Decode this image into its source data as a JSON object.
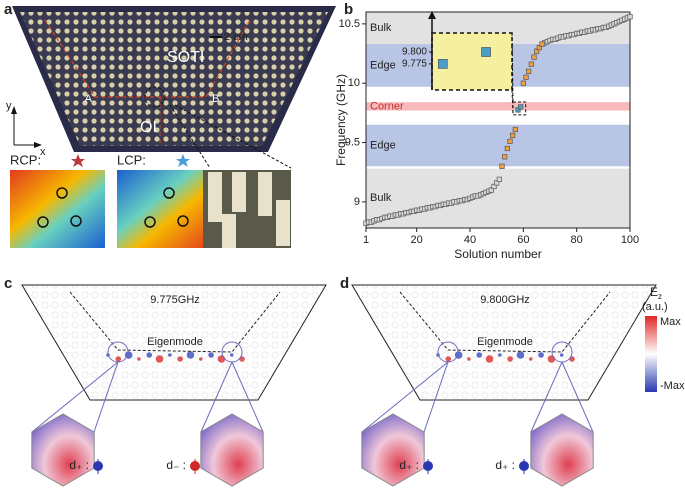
{
  "panel_labels": [
    "a",
    "b",
    "c",
    "d"
  ],
  "panel_a": {
    "soti": "SOTI",
    "oi": "OI",
    "point_a": "A",
    "point_b": "B",
    "scale": "2 cm",
    "axis_x": "x",
    "axis_y": "y",
    "rcp": "RCP:",
    "lcp": "LCP:"
  },
  "chart_data": {
    "type": "scatter",
    "xlabel": "Solution number",
    "ylabel": "Frequency (GHz)",
    "xlim": [
      1,
      100
    ],
    "ylim": [
      8.78,
      10.6
    ],
    "xticks": [
      1,
      20,
      40,
      60,
      80,
      100
    ],
    "yticks": [
      9,
      9.5,
      10,
      10.5
    ],
    "regions": [
      {
        "label": "Bulk",
        "from": 10.33,
        "to": 10.6,
        "color": "#e2e2e2"
      },
      {
        "label": "Edge",
        "from": 9.97,
        "to": 10.33,
        "color": "#b9c5e5"
      },
      {
        "label": "Corner",
        "from": 9.77,
        "to": 9.84,
        "color": "#f7b9b9"
      },
      {
        "label": "Edge",
        "from": 9.3,
        "to": 9.65,
        "color": "#b9c5e5"
      },
      {
        "label": "Bulk",
        "from": 8.78,
        "to": 9.28,
        "color": "#e2e2e2"
      }
    ],
    "series": [
      {
        "color": "#d9d9d9",
        "x": [
          1,
          2,
          3,
          4,
          5,
          6,
          7,
          8,
          9,
          10,
          11,
          12,
          13,
          14,
          15,
          16,
          17,
          18,
          19,
          20,
          21,
          22,
          23,
          24,
          25,
          26,
          27,
          28,
          29,
          30,
          31,
          32,
          33,
          34,
          35,
          36,
          37,
          38,
          39,
          40,
          41,
          42,
          43,
          44,
          45,
          46,
          47,
          48,
          49,
          50,
          51,
          68,
          69,
          70,
          71,
          72,
          73,
          74,
          75,
          76,
          77,
          78,
          79,
          80,
          81,
          82,
          83,
          84,
          85,
          86,
          87,
          88,
          89,
          90,
          91,
          92,
          93,
          94,
          95,
          96,
          97,
          98,
          99,
          100
        ],
        "values": [
          8.82,
          8.83,
          8.83,
          8.84,
          8.85,
          8.85,
          8.86,
          8.87,
          8.87,
          8.88,
          8.88,
          8.89,
          8.89,
          8.9,
          8.9,
          8.91,
          8.91,
          8.92,
          8.92,
          8.93,
          8.93,
          8.94,
          8.94,
          8.95,
          8.95,
          8.96,
          8.96,
          8.97,
          8.97,
          8.98,
          8.98,
          8.99,
          8.99,
          9.0,
          9.0,
          9.01,
          9.01,
          9.02,
          9.02,
          9.03,
          9.04,
          9.05,
          9.05,
          9.06,
          9.07,
          9.08,
          9.09,
          9.1,
          9.13,
          9.16,
          9.19,
          10.34,
          10.35,
          10.36,
          10.37,
          10.37,
          10.38,
          10.39,
          10.39,
          10.4,
          10.4,
          10.41,
          10.41,
          10.42,
          10.42,
          10.43,
          10.43,
          10.44,
          10.44,
          10.45,
          10.45,
          10.46,
          10.46,
          10.47,
          10.47,
          10.48,
          10.49,
          10.5,
          10.51,
          10.52,
          10.53,
          10.54,
          10.55,
          10.56
        ]
      },
      {
        "color": "#f0a040",
        "x": [
          52,
          53,
          54,
          55,
          56,
          57,
          60,
          61,
          62,
          63,
          64,
          65,
          66,
          67
        ],
        "values": [
          9.3,
          9.38,
          9.45,
          9.51,
          9.56,
          9.61,
          10.0,
          10.05,
          10.1,
          10.16,
          10.22,
          10.27,
          10.3,
          10.33
        ]
      },
      {
        "color": "#4a9fc8",
        "x": [
          58,
          59
        ],
        "values": [
          9.775,
          9.8
        ]
      }
    ],
    "inset": {
      "xlim": [
        57.75,
        59.6
      ],
      "ylim": [
        9.72,
        9.84
      ],
      "yticks": [
        {
          "value": 9.8,
          "label": "9.800"
        },
        {
          "value": 9.775,
          "label": "9.775"
        }
      ]
    }
  },
  "panel_c": {
    "frequency": "9.775GHz",
    "mode": "Eigenmode",
    "left_dipole": "d₊ :",
    "right_dipole": "d₋ :"
  },
  "panel_d": {
    "frequency": "9.800GHz",
    "mode": "Eigenmode",
    "left_dipole": "d₊ :",
    "right_dipole": "d₊ :"
  },
  "colorbar": {
    "title": "E",
    "title_sub": "z",
    "unit": "(a.u.)",
    "max": "Max",
    "min": "-Max"
  }
}
